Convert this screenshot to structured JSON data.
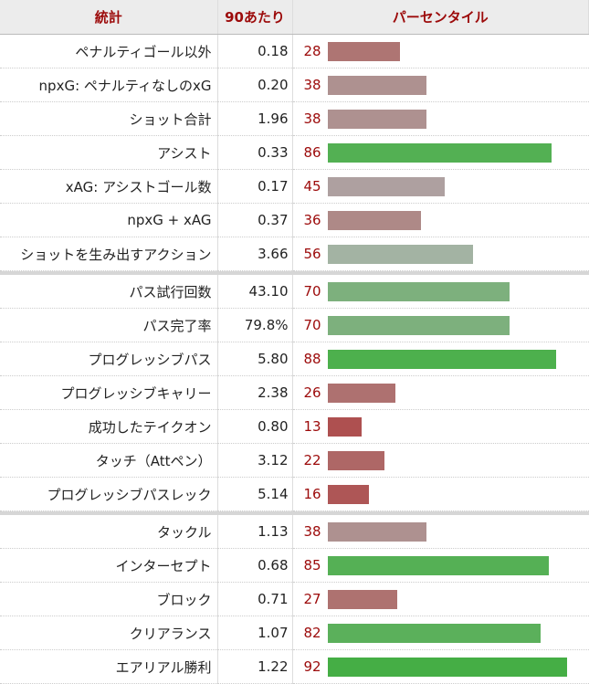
{
  "header": {
    "stat": "統計",
    "per90": "90あたり",
    "percentile": "パーセンタイル"
  },
  "groups": [
    [
      {
        "stat": "ペナルティゴール以外",
        "value": "0.18",
        "percentile": 28,
        "color": "#ae7573"
      },
      {
        "stat": "npxG: ペナルティなしのxG",
        "value": "0.20",
        "percentile": 38,
        "color": "#ae9190"
      },
      {
        "stat": "ショット合計",
        "value": "1.96",
        "percentile": 38,
        "color": "#ae9190"
      },
      {
        "stat": "アシスト",
        "value": "0.33",
        "percentile": 86,
        "color": "#53b053"
      },
      {
        "stat": "xAG: アシストゴール数",
        "value": "0.17",
        "percentile": 45,
        "color": "#aea0a0"
      },
      {
        "stat": "npxG + xAG",
        "value": "0.37",
        "percentile": 36,
        "color": "#ae8987"
      },
      {
        "stat": "ショットを生み出すアクション",
        "value": "3.66",
        "percentile": 56,
        "color": "#a3b3a3"
      }
    ],
    [
      {
        "stat": "パス試行回数",
        "value": "43.10",
        "percentile": 70,
        "color": "#7db07d"
      },
      {
        "stat": "パス完了率",
        "value": "79.8%",
        "percentile": 70,
        "color": "#7db07d"
      },
      {
        "stat": "プログレッシブパス",
        "value": "5.80",
        "percentile": 88,
        "color": "#4db04d"
      },
      {
        "stat": "プログレッシブキャリー",
        "value": "2.38",
        "percentile": 26,
        "color": "#ae7170"
      },
      {
        "stat": "成功したテイクオン",
        "value": "0.80",
        "percentile": 13,
        "color": "#ae5050"
      },
      {
        "stat": "タッチ（Attペン）",
        "value": "3.12",
        "percentile": 22,
        "color": "#ae6766"
      },
      {
        "stat": "プログレッシブパスレック",
        "value": "5.14",
        "percentile": 16,
        "color": "#ae5656"
      }
    ],
    [
      {
        "stat": "タックル",
        "value": "1.13",
        "percentile": 38,
        "color": "#ae9190"
      },
      {
        "stat": "インターセプト",
        "value": "0.68",
        "percentile": 85,
        "color": "#55b055"
      },
      {
        "stat": "ブロック",
        "value": "0.71",
        "percentile": 27,
        "color": "#ae7270"
      },
      {
        "stat": "クリアランス",
        "value": "1.07",
        "percentile": 82,
        "color": "#5bb05b"
      },
      {
        "stat": "エアリアル勝利",
        "value": "1.22",
        "percentile": 92,
        "color": "#45ae45"
      }
    ]
  ]
}
